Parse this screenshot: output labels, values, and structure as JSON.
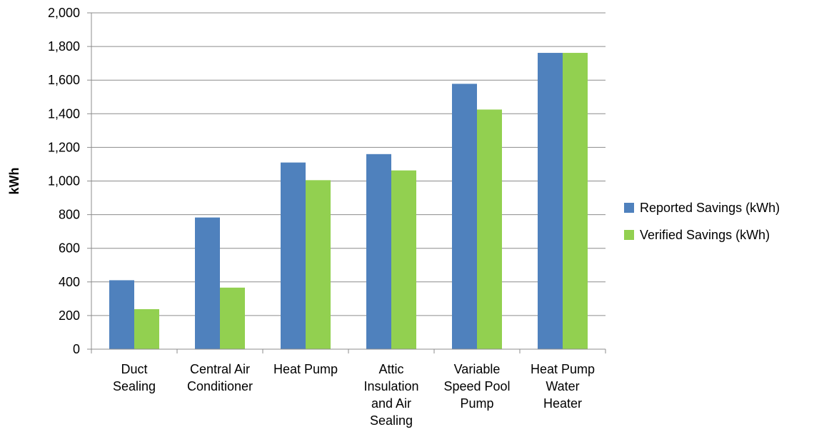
{
  "chart_data": {
    "type": "bar",
    "title": "",
    "xlabel": "",
    "ylabel": "kWh",
    "ylim": [
      0,
      2000
    ],
    "yticks": [
      0,
      200,
      400,
      600,
      800,
      1000,
      1200,
      1400,
      1600,
      1800,
      2000
    ],
    "ytick_labels": [
      "0",
      "200",
      "400",
      "600",
      "800",
      "1,000",
      "1,200",
      "1,400",
      "1,600",
      "1,800",
      "2,000"
    ],
    "grid": true,
    "legend_position": "right",
    "categories": [
      [
        "Duct",
        "Sealing"
      ],
      [
        "Central Air",
        "Conditioner"
      ],
      [
        "Heat Pump"
      ],
      [
        "Attic",
        "Insulation",
        "and Air",
        "Sealing"
      ],
      [
        "Variable",
        "Speed Pool",
        "Pump"
      ],
      [
        "Heat Pump",
        "Water",
        "Heater"
      ]
    ],
    "series": [
      {
        "name": "Reported Savings (kWh)",
        "color": "#4f81bd",
        "values": [
          410,
          783,
          1110,
          1160,
          1578,
          1762
        ]
      },
      {
        "name": "Verified Savings (kWh)",
        "color": "#92d050",
        "values": [
          238,
          366,
          1005,
          1063,
          1425,
          1762
        ]
      }
    ]
  }
}
